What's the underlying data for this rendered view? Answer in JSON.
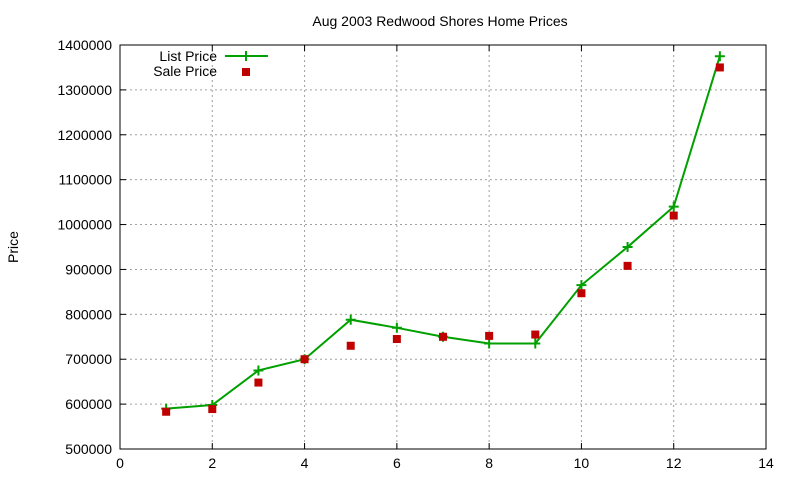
{
  "chart_data": {
    "type": "line",
    "title": "Aug 2003 Redwood Shores Home Prices",
    "xlabel": "",
    "ylabel": "Price",
    "xlim": [
      0,
      14
    ],
    "ylim": [
      500000,
      1400000
    ],
    "x_ticks": [
      0,
      2,
      4,
      6,
      8,
      10,
      12,
      14
    ],
    "y_ticks": [
      500000,
      600000,
      700000,
      800000,
      900000,
      1000000,
      1100000,
      1200000,
      1300000,
      1400000
    ],
    "grid": true,
    "legend_position": "top-left",
    "series": [
      {
        "name": "List Price",
        "style": "linespoints-plus",
        "color": "#00a000",
        "x": [
          1,
          2,
          3,
          4,
          5,
          6,
          7,
          8,
          9,
          10,
          11,
          12,
          13
        ],
        "values": [
          590000,
          598000,
          675000,
          700000,
          788000,
          770000,
          750000,
          735000,
          735000,
          865000,
          950000,
          1040000,
          1375000
        ]
      },
      {
        "name": "Sale Price",
        "style": "points-square",
        "color": "#c00000",
        "x": [
          1,
          2,
          3,
          4,
          5,
          6,
          7,
          8,
          9,
          10,
          11,
          12,
          13
        ],
        "values": [
          583000,
          589000,
          648000,
          700000,
          730000,
          745000,
          750000,
          752000,
          755000,
          847000,
          908000,
          1020000,
          1350000
        ]
      }
    ]
  }
}
